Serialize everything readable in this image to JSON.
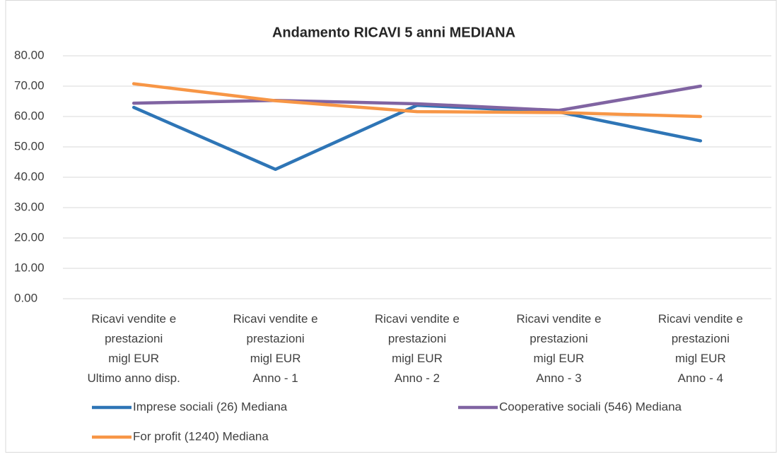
{
  "chart_data": {
    "type": "line",
    "title": "Andamento RICAVI 5 anni MEDIANA",
    "categories": [
      "Ricavi vendite e\nprestazioni\nmigl EUR\nUltimo anno disp.",
      "Ricavi vendite e\nprestazioni\nmigl EUR\nAnno - 1",
      "Ricavi vendite e\nprestazioni\nmigl EUR\nAnno - 2",
      "Ricavi vendite e\nprestazioni\nmigl EUR\nAnno - 3",
      "Ricavi vendite e\nprestazioni\nmigl EUR\nAnno - 4"
    ],
    "series": [
      {
        "name": "Imprese sociali (26) Mediana",
        "color": "#2e75b6",
        "values": [
          63.0,
          42.6,
          63.7,
          61.5,
          52.0
        ]
      },
      {
        "name": "Cooperative sociali (546) Mediana",
        "color": "#8064a2",
        "values": [
          64.4,
          65.3,
          64.2,
          62.0,
          70.0
        ]
      },
      {
        "name": "For profit (1240) Mediana",
        "color": "#f79646",
        "values": [
          70.8,
          65.2,
          61.6,
          61.3,
          60.0
        ]
      }
    ],
    "ylim": [
      0,
      80
    ],
    "yticks": [
      {
        "value": 0,
        "label": "0.00"
      },
      {
        "value": 10,
        "label": "10.00"
      },
      {
        "value": 20,
        "label": "20.00"
      },
      {
        "value": 30,
        "label": "30.00"
      },
      {
        "value": 40,
        "label": "40.00"
      },
      {
        "value": 50,
        "label": "50.00"
      },
      {
        "value": 60,
        "label": "60.00"
      },
      {
        "value": 70,
        "label": "70.00"
      },
      {
        "value": 80,
        "label": "80.00"
      }
    ],
    "grid": true,
    "legend": "bottom"
  }
}
